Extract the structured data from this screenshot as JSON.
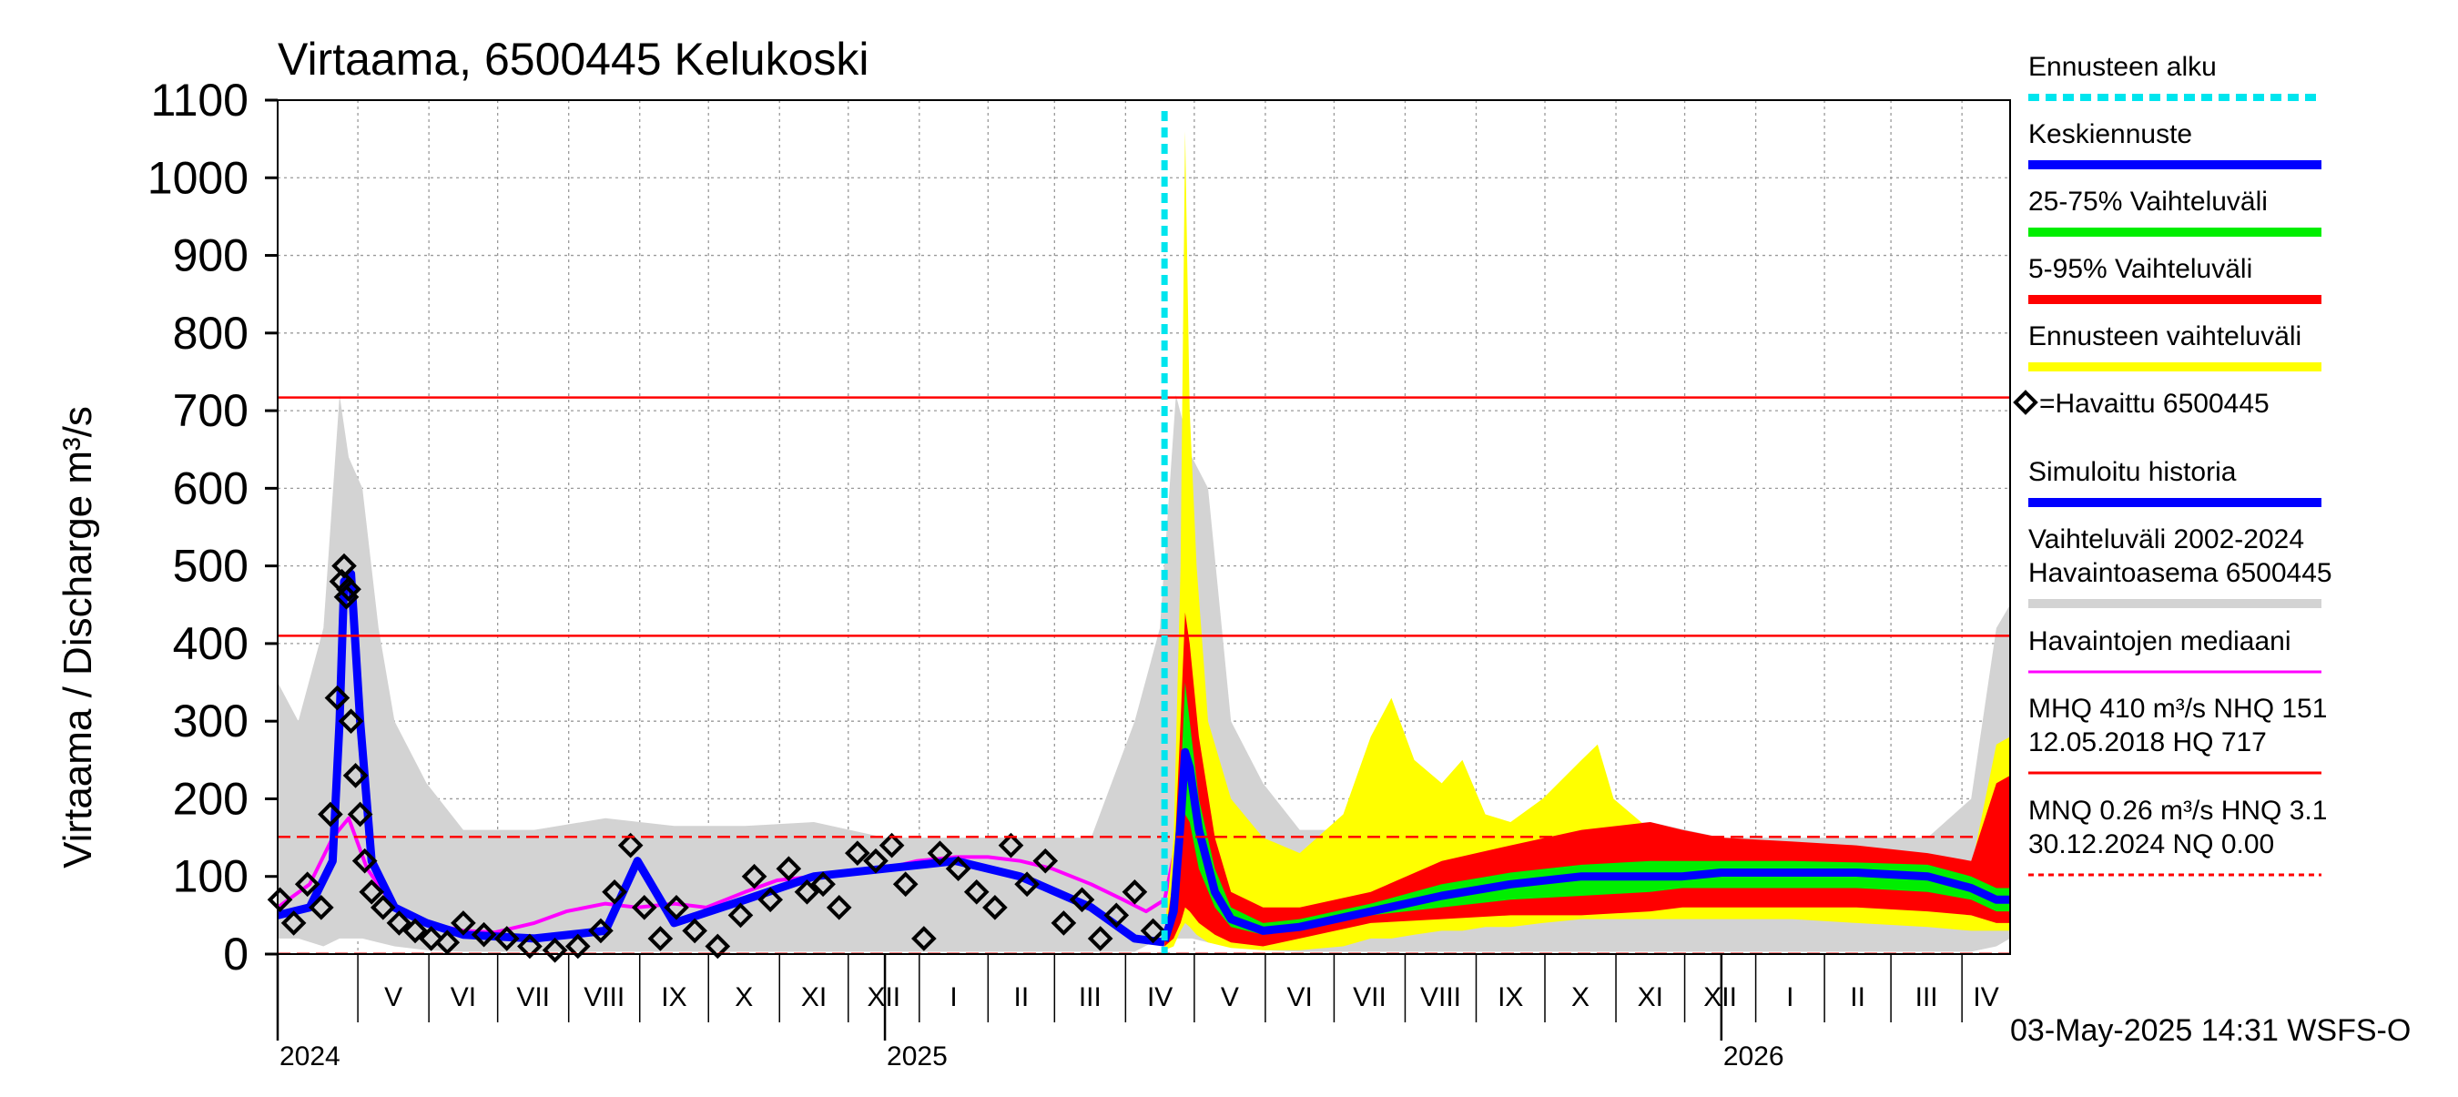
{
  "chart_data": {
    "type": "line",
    "title": "Virtaama, 6500445 Kelukoski",
    "ylabel": "Virtaama / Discharge    m³/s",
    "ylim": [
      0,
      1100
    ],
    "yticks": [
      0,
      100,
      200,
      300,
      400,
      500,
      600,
      700,
      800,
      900,
      1000,
      1100
    ],
    "grid": true,
    "legend_position": "right",
    "xlim": [
      "2024-04-11",
      "2026-05-07"
    ],
    "forecast_start": "2025-05-03",
    "month_labels": [
      {
        "label": "V",
        "date": "2024-05-16"
      },
      {
        "label": "VI",
        "date": "2024-06-16"
      },
      {
        "label": "VII",
        "date": "2024-07-16"
      },
      {
        "label": "VIII",
        "date": "2024-08-16"
      },
      {
        "label": "IX",
        "date": "2024-09-16"
      },
      {
        "label": "X",
        "date": "2024-10-16"
      },
      {
        "label": "XI",
        "date": "2024-11-16"
      },
      {
        "label": "XII",
        "date": "2024-12-16"
      },
      {
        "label": "I",
        "date": "2025-01-16"
      },
      {
        "label": "II",
        "date": "2025-02-15"
      },
      {
        "label": "III",
        "date": "2025-03-16"
      },
      {
        "label": "IV",
        "date": "2025-04-16"
      },
      {
        "label": "V",
        "date": "2025-05-16"
      },
      {
        "label": "VI",
        "date": "2025-06-16"
      },
      {
        "label": "VII",
        "date": "2025-07-16"
      },
      {
        "label": "VIII",
        "date": "2025-08-16"
      },
      {
        "label": "IX",
        "date": "2025-09-16"
      },
      {
        "label": "X",
        "date": "2025-10-16"
      },
      {
        "label": "XI",
        "date": "2025-11-16"
      },
      {
        "label": "XII",
        "date": "2025-12-16"
      },
      {
        "label": "I",
        "date": "2026-01-16"
      },
      {
        "label": "II",
        "date": "2026-02-15"
      },
      {
        "label": "III",
        "date": "2026-03-16"
      },
      {
        "label": "IV",
        "date": "2026-04-16"
      }
    ],
    "year_labels": [
      {
        "label": "2024",
        "date": "2024-04-11"
      },
      {
        "label": "2025",
        "date": "2025-01-01"
      },
      {
        "label": "2026",
        "date": "2026-01-01"
      }
    ],
    "reference_lines": [
      {
        "name": "HQ",
        "value": 717,
        "style": "solid",
        "color": "#ff0000"
      },
      {
        "name": "MHQ",
        "value": 410,
        "style": "solid",
        "color": "#ff0000"
      },
      {
        "name": "NHQ",
        "value": 151,
        "style": "dashed",
        "color": "#ff0000"
      },
      {
        "name": "MNQ",
        "value": 0.26,
        "style": "dashed",
        "color": "#ff0000"
      }
    ],
    "colors": {
      "forecast_start": "#00e5ee",
      "mean_forecast": "#0000ff",
      "band_25_75": "#00ee00",
      "band_5_95": "#ff0000",
      "band_forecast": "#ffff00",
      "observed": "#000000",
      "simulated": "#0000ff",
      "historical_range": "#d3d3d3",
      "median": "#ff00ff",
      "reference": "#ff0000"
    },
    "series": [
      {
        "name": "Vaihteluväli 2002-2024 Havaintoasema 6500445",
        "kind": "band",
        "x": [
          "2024-04-11",
          "2024-04-20",
          "2024-05-01",
          "2024-05-08",
          "2024-05-12",
          "2024-05-18",
          "2024-05-25",
          "2024-06-01",
          "2024-06-15",
          "2024-07-01",
          "2024-08-01",
          "2024-09-01",
          "2024-10-01",
          "2024-11-01",
          "2024-12-01",
          "2025-01-01",
          "2025-02-01",
          "2025-03-01",
          "2025-04-01",
          "2025-04-20",
          "2025-05-01",
          "2025-05-08",
          "2025-05-15",
          "2025-05-22",
          "2025-06-01",
          "2025-06-15",
          "2025-07-01",
          "2025-08-01",
          "2025-09-01",
          "2025-10-01",
          "2025-11-01",
          "2025-12-01",
          "2026-01-01",
          "2026-02-01",
          "2026-03-01",
          "2026-04-01",
          "2026-04-20",
          "2026-05-01",
          "2026-05-07"
        ],
        "low": [
          20,
          20,
          10,
          20,
          20,
          20,
          15,
          10,
          5,
          3,
          3,
          3,
          3,
          3,
          3,
          3,
          3,
          3,
          3,
          3,
          20,
          20,
          20,
          15,
          10,
          5,
          3,
          3,
          3,
          3,
          3,
          3,
          3,
          3,
          3,
          3,
          3,
          10,
          20
        ],
        "high": [
          350,
          300,
          420,
          720,
          640,
          600,
          420,
          300,
          220,
          160,
          160,
          175,
          165,
          165,
          170,
          150,
          150,
          150,
          150,
          300,
          420,
          720,
          640,
          600,
          300,
          220,
          160,
          160,
          175,
          165,
          165,
          170,
          150,
          150,
          150,
          150,
          200,
          420,
          450
        ]
      },
      {
        "name": "Havaintojen mediaani",
        "kind": "line",
        "x": [
          "2024-04-11",
          "2024-04-25",
          "2024-05-05",
          "2024-05-12",
          "2024-05-20",
          "2024-06-01",
          "2024-06-15",
          "2024-07-01",
          "2024-07-15",
          "2024-08-01",
          "2024-08-15",
          "2024-09-01",
          "2024-09-15",
          "2024-10-01",
          "2024-10-15",
          "2024-11-01",
          "2024-11-15",
          "2024-12-01",
          "2024-12-15",
          "2025-01-01",
          "2025-01-15",
          "2025-02-01",
          "2025-02-15",
          "2025-03-01",
          "2025-03-15",
          "2025-04-01",
          "2025-04-15",
          "2025-04-25",
          "2025-05-03",
          "2025-05-08",
          "2025-05-12",
          "2025-05-20",
          "2025-06-01",
          "2025-06-15",
          "2025-07-01",
          "2025-07-15",
          "2025-08-01",
          "2025-08-15",
          "2025-09-01",
          "2025-09-15",
          "2025-10-01",
          "2025-10-15",
          "2025-11-01",
          "2025-11-15",
          "2025-12-01",
          "2025-12-15",
          "2026-01-01",
          "2026-01-15",
          "2026-02-01",
          "2026-02-15",
          "2026-03-01",
          "2026-03-15",
          "2026-04-01",
          "2026-04-15",
          "2026-04-25",
          "2026-05-07"
        ],
        "y": [
          60,
          90,
          150,
          175,
          110,
          60,
          40,
          30,
          28,
          40,
          55,
          65,
          60,
          65,
          60,
          80,
          95,
          100,
          105,
          110,
          120,
          125,
          125,
          120,
          110,
          90,
          70,
          55,
          70,
          140,
          170,
          100,
          40,
          30,
          40,
          50,
          55,
          60,
          65,
          70,
          75,
          80,
          85,
          90,
          95,
          100,
          105,
          108,
          110,
          110,
          108,
          105,
          100,
          90,
          60,
          60
        ]
      },
      {
        "name": "Simuloitu historia",
        "kind": "line",
        "x": [
          "2024-04-11",
          "2024-04-25",
          "2024-05-05",
          "2024-05-08",
          "2024-05-10",
          "2024-05-13",
          "2024-05-17",
          "2024-05-22",
          "2024-06-01",
          "2024-06-15",
          "2024-07-01",
          "2024-08-01",
          "2024-09-01",
          "2024-09-15",
          "2024-10-01",
          "2024-11-01",
          "2024-12-01",
          "2025-01-01",
          "2025-02-01",
          "2025-03-01",
          "2025-04-01",
          "2025-04-20",
          "2025-05-03"
        ],
        "y": [
          50,
          60,
          120,
          300,
          480,
          490,
          300,
          120,
          60,
          40,
          25,
          20,
          30,
          120,
          40,
          70,
          100,
          110,
          120,
          100,
          60,
          20,
          15
        ]
      },
      {
        "name": "Havaittu 6500445",
        "kind": "scatter",
        "x": [
          "2024-04-12",
          "2024-04-18",
          "2024-04-24",
          "2024-04-30",
          "2024-05-04",
          "2024-05-07",
          "2024-05-09",
          "2024-05-10",
          "2024-05-11",
          "2024-05-12",
          "2024-05-13",
          "2024-05-15",
          "2024-05-17",
          "2024-05-19",
          "2024-05-22",
          "2024-05-27",
          "2024-06-03",
          "2024-06-10",
          "2024-06-17",
          "2024-06-24",
          "2024-07-01",
          "2024-07-10",
          "2024-07-20",
          "2024-07-30",
          "2024-08-10",
          "2024-08-20",
          "2024-08-30",
          "2024-09-05",
          "2024-09-12",
          "2024-09-18",
          "2024-09-25",
          "2024-10-02",
          "2024-10-10",
          "2024-10-20",
          "2024-10-30",
          "2024-11-05",
          "2024-11-12",
          "2024-11-20",
          "2024-11-28",
          "2024-12-05",
          "2024-12-12",
          "2024-12-20",
          "2024-12-28",
          "2025-01-04",
          "2025-01-10",
          "2025-01-18",
          "2025-01-25",
          "2025-02-02",
          "2025-02-10",
          "2025-02-18",
          "2025-02-25",
          "2025-03-04",
          "2025-03-12",
          "2025-03-20",
          "2025-03-28",
          "2025-04-05",
          "2025-04-12",
          "2025-04-20",
          "2025-04-28"
        ],
        "y": [
          70,
          40,
          90,
          60,
          180,
          330,
          480,
          500,
          460,
          470,
          300,
          230,
          180,
          120,
          80,
          60,
          40,
          30,
          20,
          15,
          40,
          25,
          20,
          10,
          5,
          10,
          30,
          80,
          140,
          60,
          20,
          60,
          30,
          10,
          50,
          100,
          70,
          110,
          80,
          90,
          60,
          130,
          120,
          140,
          90,
          20,
          130,
          110,
          80,
          60,
          140,
          90,
          120,
          40,
          70,
          20,
          50,
          80,
          30
        ]
      },
      {
        "name": "Ennusteen vaihteluväli",
        "kind": "band",
        "x": [
          "2025-05-03",
          "2025-05-07",
          "2025-05-10",
          "2025-05-12",
          "2025-05-14",
          "2025-05-17",
          "2025-05-22",
          "2025-06-01",
          "2025-06-15",
          "2025-07-01",
          "2025-07-20",
          "2025-08-01",
          "2025-08-10",
          "2025-08-20",
          "2025-09-01",
          "2025-09-10",
          "2025-09-20",
          "2025-10-01",
          "2025-10-15",
          "2025-11-01",
          "2025-11-08",
          "2025-11-15",
          "2025-12-01",
          "2025-12-15",
          "2026-01-01",
          "2026-02-01",
          "2026-03-01",
          "2026-04-01",
          "2026-04-20",
          "2026-05-01",
          "2026-05-07"
        ],
        "low": [
          5,
          10,
          30,
          40,
          35,
          25,
          15,
          8,
          5,
          5,
          10,
          20,
          20,
          25,
          30,
          30,
          35,
          35,
          40,
          45,
          45,
          45,
          45,
          45,
          45,
          45,
          40,
          35,
          30,
          30,
          30
        ],
        "high": [
          30,
          150,
          500,
          1060,
          700,
          500,
          300,
          200,
          150,
          130,
          180,
          280,
          330,
          250,
          220,
          250,
          180,
          170,
          200,
          250,
          270,
          200,
          160,
          140,
          130,
          120,
          120,
          120,
          110,
          270,
          280
        ]
      },
      {
        "name": "5-95% Vaihteluväli",
        "kind": "band",
        "x": [
          "2025-05-03",
          "2025-05-07",
          "2025-05-10",
          "2025-05-12",
          "2025-05-14",
          "2025-05-18",
          "2025-05-25",
          "2025-06-01",
          "2025-06-15",
          "2025-07-01",
          "2025-08-01",
          "2025-09-01",
          "2025-10-01",
          "2025-11-01",
          "2025-12-01",
          "2025-12-15",
          "2026-01-01",
          "2026-02-01",
          "2026-03-01",
          "2026-04-01",
          "2026-04-20",
          "2026-05-01",
          "2026-05-07"
        ],
        "low": [
          10,
          20,
          40,
          60,
          55,
          40,
          25,
          15,
          10,
          20,
          40,
          45,
          50,
          50,
          55,
          60,
          60,
          60,
          60,
          55,
          50,
          40,
          40
        ],
        "high": [
          20,
          100,
          300,
          440,
          400,
          280,
          150,
          80,
          60,
          60,
          80,
          120,
          140,
          160,
          170,
          160,
          150,
          145,
          140,
          130,
          120,
          220,
          230
        ]
      },
      {
        "name": "25-75% Vaihteluväli",
        "kind": "band",
        "x": [
          "2025-05-03",
          "2025-05-07",
          "2025-05-10",
          "2025-05-12",
          "2025-05-14",
          "2025-05-18",
          "2025-05-25",
          "2025-06-01",
          "2025-06-15",
          "2025-07-01",
          "2025-08-01",
          "2025-09-01",
          "2025-10-01",
          "2025-11-01",
          "2025-12-01",
          "2025-12-15",
          "2026-01-01",
          "2026-02-01",
          "2026-03-01",
          "2026-04-01",
          "2026-04-20",
          "2026-05-01",
          "2026-05-07"
        ],
        "low": [
          15,
          40,
          120,
          180,
          170,
          110,
          60,
          35,
          25,
          30,
          50,
          60,
          70,
          75,
          80,
          85,
          85,
          85,
          85,
          80,
          70,
          55,
          55
        ],
        "high": [
          18,
          70,
          220,
          350,
          300,
          200,
          110,
          60,
          40,
          45,
          65,
          90,
          105,
          115,
          120,
          120,
          120,
          120,
          118,
          115,
          100,
          85,
          85
        ]
      },
      {
        "name": "Keskiennuste",
        "kind": "line",
        "x": [
          "2025-05-03",
          "2025-05-07",
          "2025-05-10",
          "2025-05-12",
          "2025-05-14",
          "2025-05-18",
          "2025-05-25",
          "2025-06-01",
          "2025-06-15",
          "2025-07-01",
          "2025-08-01",
          "2025-09-01",
          "2025-10-01",
          "2025-11-01",
          "2025-12-01",
          "2025-12-15",
          "2026-01-01",
          "2026-02-01",
          "2026-03-01",
          "2026-04-01",
          "2026-04-20",
          "2026-05-01",
          "2026-05-07"
        ],
        "y": [
          17,
          55,
          170,
          260,
          240,
          160,
          80,
          45,
          30,
          35,
          55,
          75,
          90,
          100,
          100,
          100,
          105,
          105,
          105,
          100,
          85,
          70,
          70
        ]
      }
    ],
    "legend": [
      {
        "label": "Ennusteen alku",
        "swatch": "dashed",
        "color": "#00e5ee"
      },
      {
        "label": "Keskiennuste",
        "swatch": "bar",
        "color": "#0000ff"
      },
      {
        "label": "25-75% Vaihteluväli",
        "swatch": "bar",
        "color": "#00ee00"
      },
      {
        "label": "5-95% Vaihteluväli",
        "swatch": "bar",
        "color": "#ff0000"
      },
      {
        "label": "Ennusteen vaihteluväli",
        "swatch": "bar",
        "color": "#ffff00"
      },
      {
        "label": "=Havaittu 6500445",
        "swatch": "diamond",
        "color": "#000000"
      },
      {
        "label": "Simuloitu historia",
        "swatch": "bar",
        "color": "#0000ff"
      },
      {
        "label": "Vaihteluväli 2002-2024",
        "label2": " Havaintoasema 6500445",
        "swatch": "bar",
        "color": "#d3d3d3"
      },
      {
        "label": "Havaintojen mediaani",
        "swatch": "thin",
        "color": "#ff00ff"
      },
      {
        "label": "MHQ  410 m³/s NHQ  151",
        "label2": "12.05.2018 HQ  717",
        "swatch": "thin",
        "color": "#ff0000"
      },
      {
        "label": "MNQ 0.26 m³/s HNQ  3.1",
        "label2": "30.12.2024 NQ 0.00",
        "swatch": "dashed-thin",
        "color": "#ff0000"
      }
    ],
    "footer": "03-May-2025 14:31 WSFS-O"
  }
}
